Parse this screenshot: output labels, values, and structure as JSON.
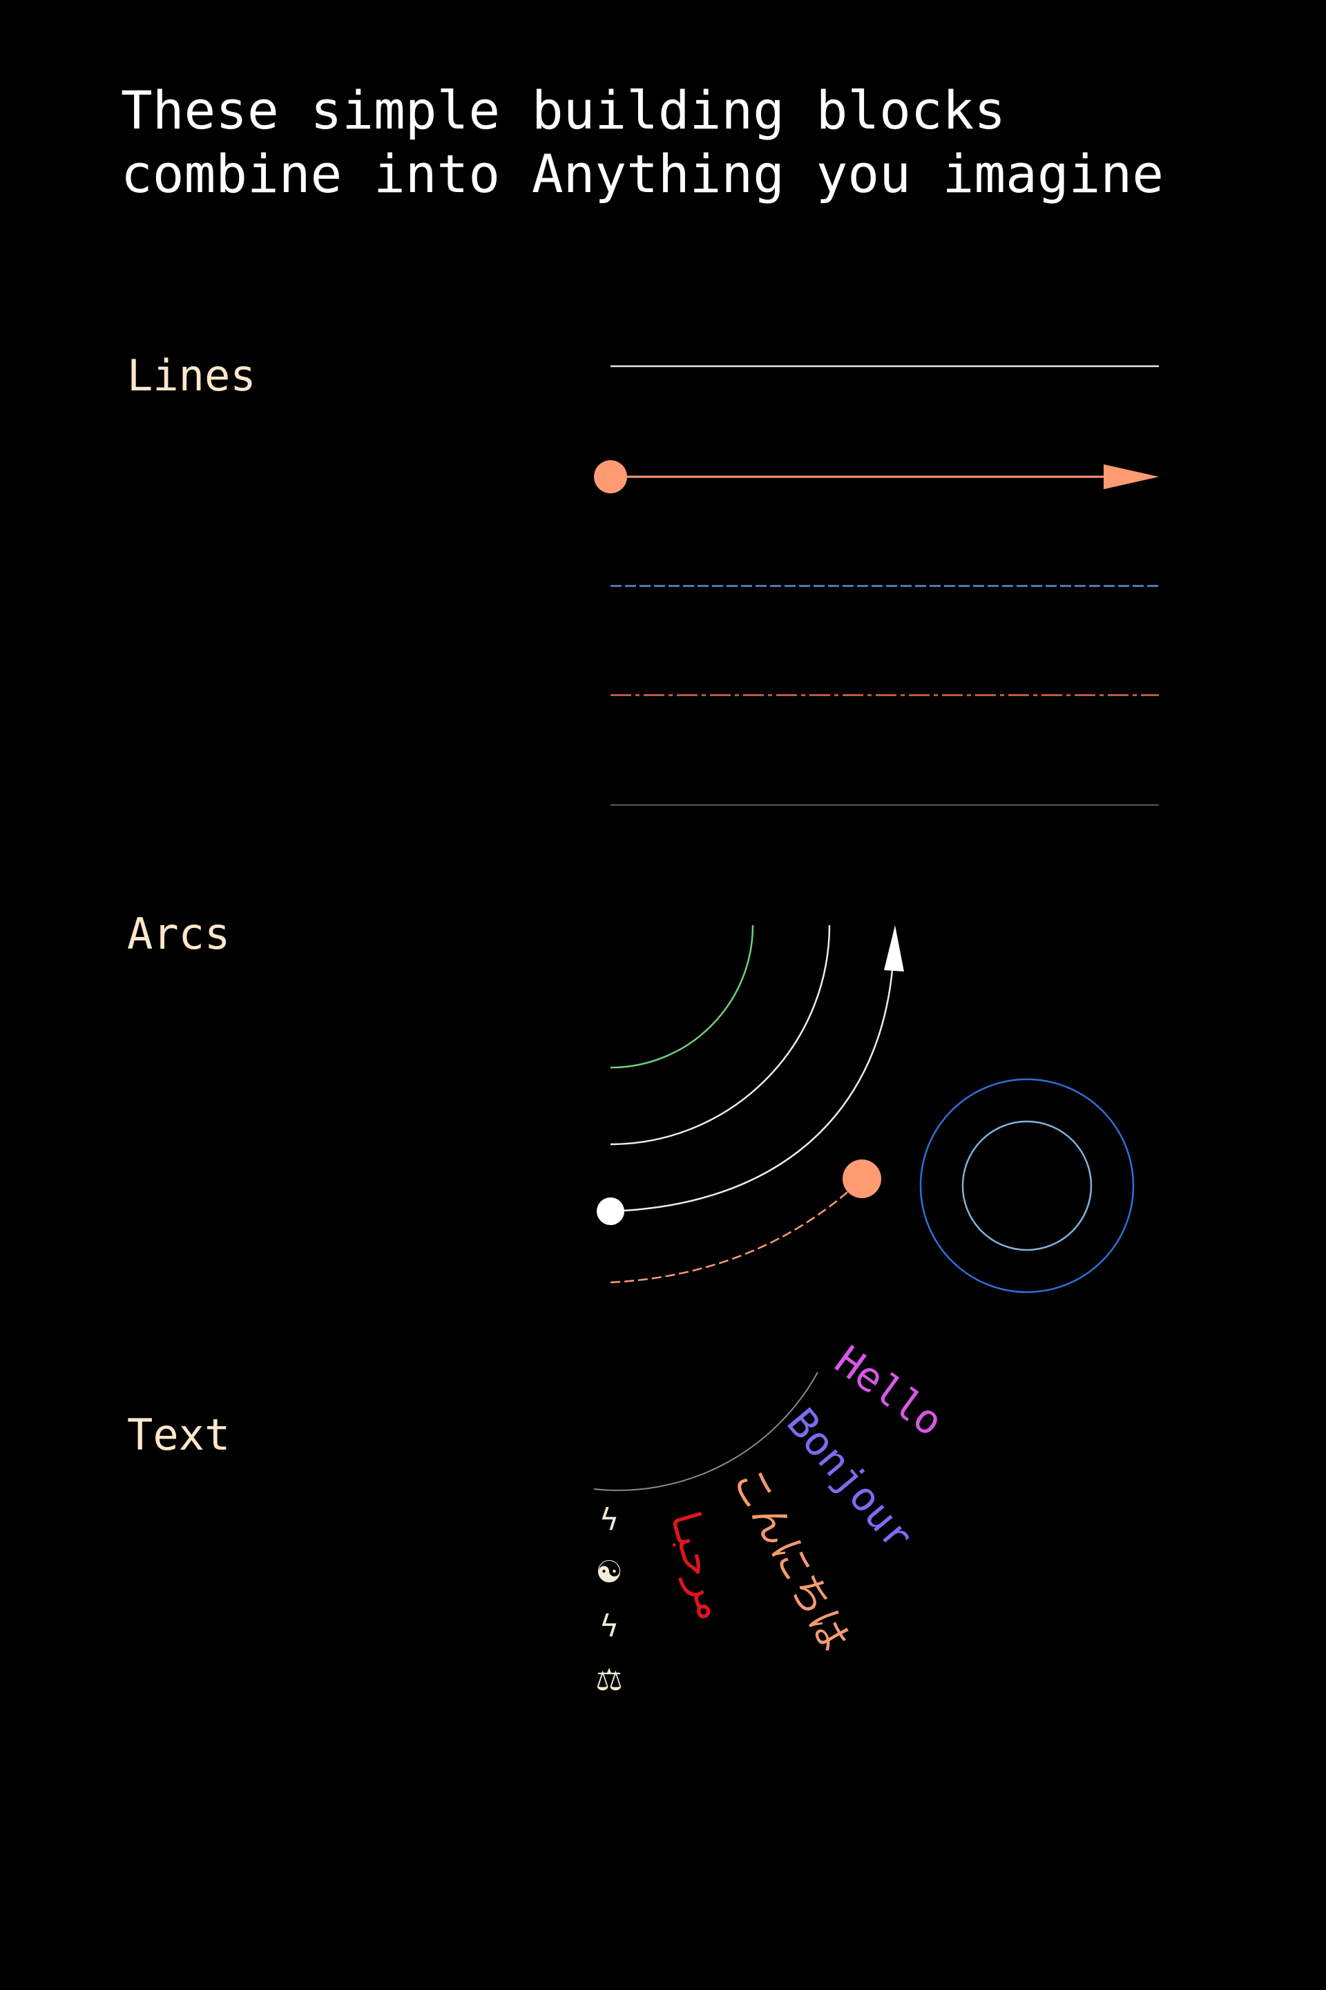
{
  "title": {
    "line1": "These simple building blocks",
    "line2": "combine into Anything you imagine"
  },
  "sections": {
    "lines": {
      "label": "Lines"
    },
    "arcs": {
      "label": "Arcs"
    },
    "text": {
      "label": "Text"
    }
  },
  "greetings": [
    {
      "text": "Hello",
      "color": "#d957e6"
    },
    {
      "text": "Bonjour",
      "color": "#7d6cf0"
    },
    {
      "text": "こんにちは",
      "color": "#f49a72"
    },
    {
      "text": "مرحبا",
      "color": "#e0141e"
    }
  ],
  "glyphs": [
    "ϟ",
    "☯",
    "ϟ",
    "⚖"
  ],
  "colors": {
    "background": "#000000",
    "white": "#ffffff",
    "salmon": "#ff9b73",
    "blue_dash": "#5c93c7",
    "orange_dash": "#dd6a45",
    "gray": "#5a5a5a",
    "green": "#6fd07c",
    "circle_outer": "#2f6fd8",
    "circle_inner": "#7fb3dd"
  }
}
